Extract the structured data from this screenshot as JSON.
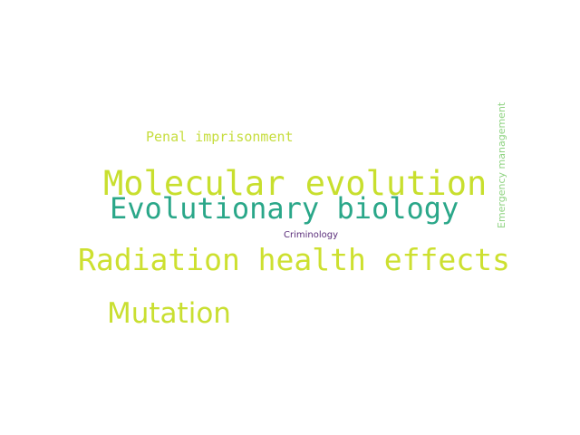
{
  "words": {
    "molecular_evolution": {
      "text": "Molecular evolution",
      "color": "#c8df2e"
    },
    "evolutionary_biology": {
      "text": "Evolutionary biology",
      "color": "#2aa789"
    },
    "radiation_health_effects": {
      "text": "Radiation health effects",
      "color": "#cde030"
    },
    "mutation": {
      "text": "Mutation",
      "color": "#c9df31"
    },
    "penal_imprisonment": {
      "text": "Penal imprisonment",
      "color": "#c6dd3d"
    },
    "criminology": {
      "text": "Criminology",
      "color": "#5a2d7a"
    },
    "emergency_management": {
      "text": "Emergency management",
      "color": "#8fd382"
    }
  }
}
